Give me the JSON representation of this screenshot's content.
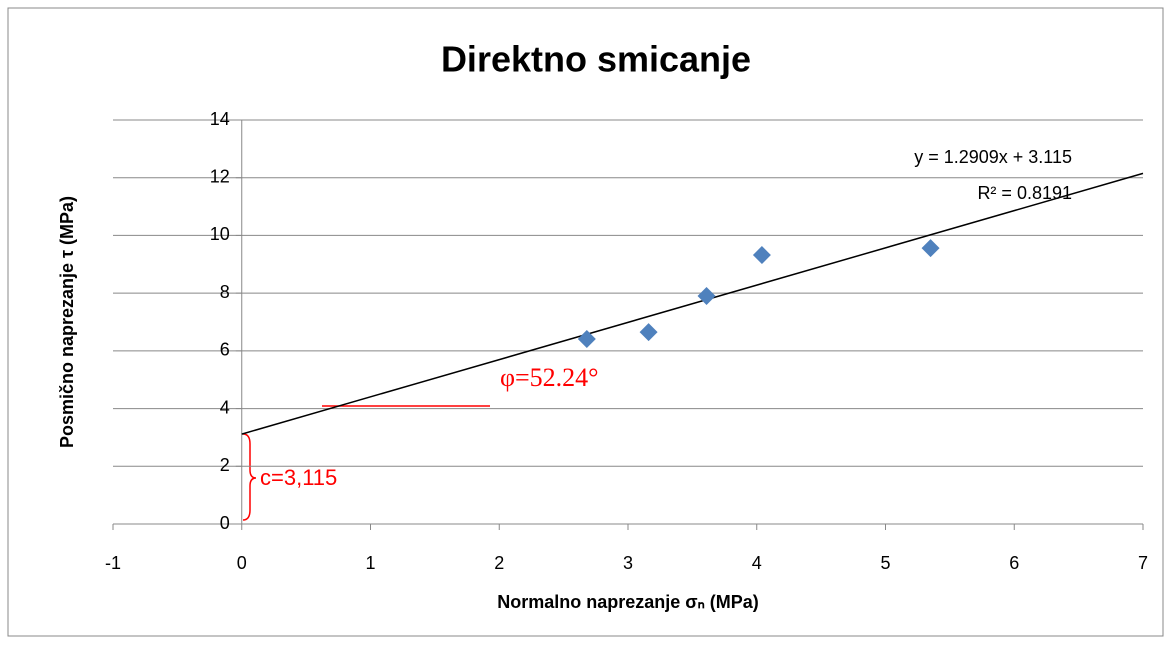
{
  "chart_data": {
    "type": "scatter",
    "title": "Direktno smicanje",
    "x_label": "Normalno naprezanje σₙ (MPa)",
    "y_label": "Posmično naprezanje τ (MPa)",
    "series": [
      {
        "name": "Posmično naprezanje τ (MPa)",
        "color": "#4f81bd",
        "x": [
          2.68,
          3.16,
          3.61,
          4.04,
          5.35
        ],
        "values": [
          6.41,
          6.65,
          7.9,
          9.32,
          9.56
        ]
      }
    ],
    "xlim": [
      -1,
      7
    ],
    "xticks": [
      -1,
      0,
      1,
      2,
      3,
      4,
      5,
      6,
      7
    ],
    "ylim": [
      0,
      14
    ],
    "yticks": [
      0,
      2,
      4,
      6,
      8,
      10,
      12,
      14
    ],
    "grid": true,
    "trendline": {
      "equation": "y = 1.2909x + 3.115",
      "r2": "R² = 0.8191",
      "slope": 1.2909,
      "intercept": 3.115,
      "x_range": [
        0,
        7
      ],
      "color": "#000000"
    },
    "annotations": [
      {
        "text": "φ=52.24°",
        "color": "#ff0000"
      },
      {
        "text": "c=3,115",
        "color": "#ff0000"
      }
    ]
  }
}
